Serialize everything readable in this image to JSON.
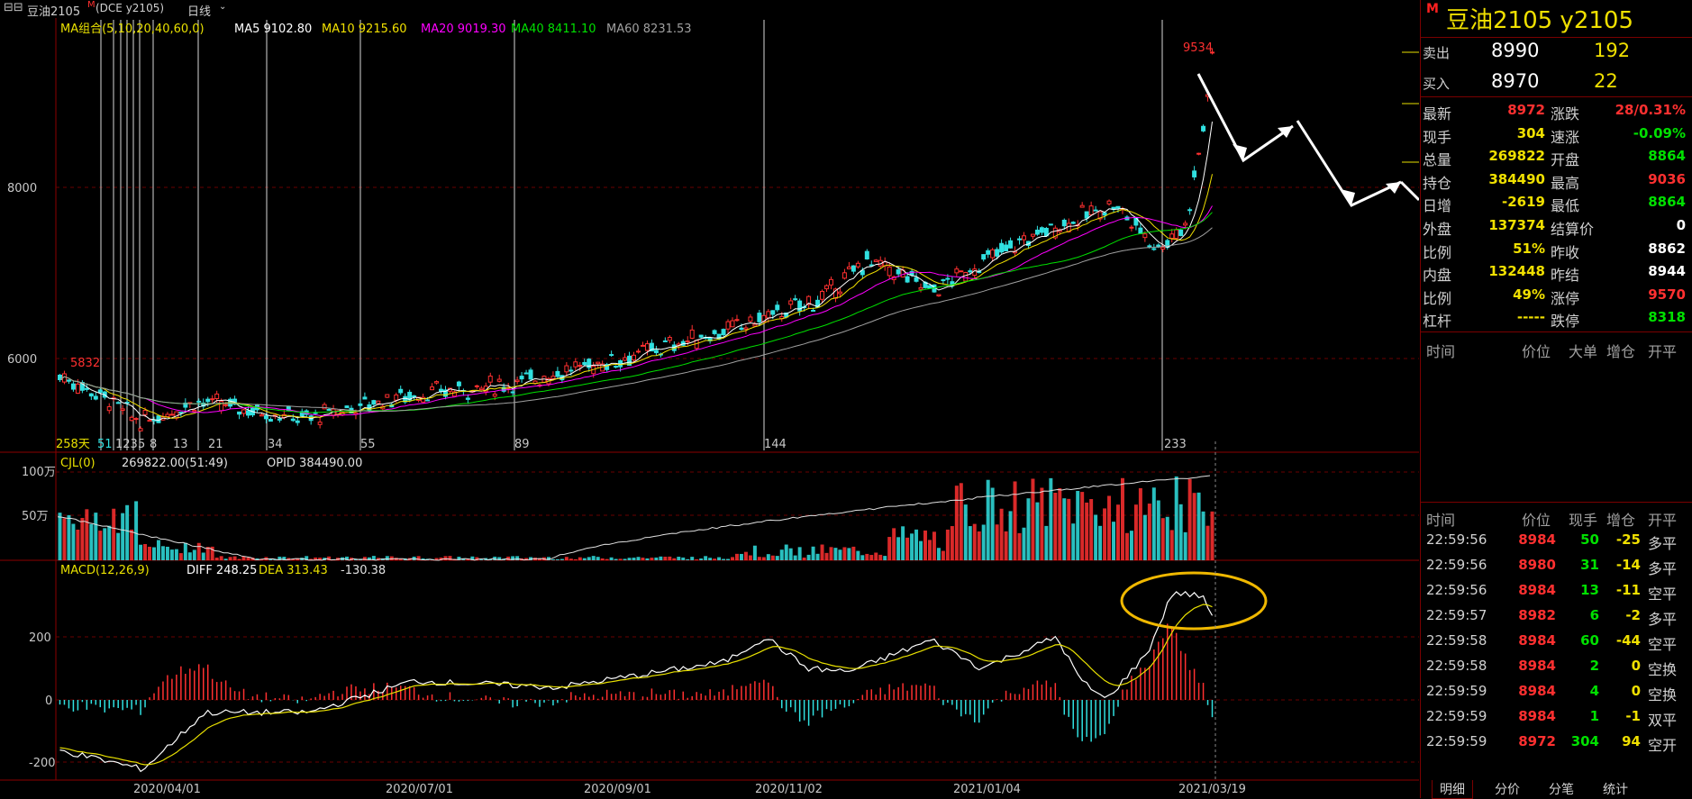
{
  "header": {
    "app_icon": "menu-icon",
    "contract": "豆油2105",
    "contract_marker": "M",
    "exchange_code": "(DCE  y2105)",
    "period": "日线"
  },
  "ma_legend": {
    "title": "MA组合(5,10,20,40,60,0)",
    "items": [
      {
        "label": "MA5 9102.80",
        "color": "#ffffff"
      },
      {
        "label": "MA10 9215.60",
        "color": "#f0e000"
      },
      {
        "label": "MA20 9019.30",
        "color": "#ff00ff"
      },
      {
        "label": "MA40 8411.10",
        "color": "#00e000"
      },
      {
        "label": "MA60 8231.53",
        "color": "#a0a0a0"
      }
    ]
  },
  "main_axis": {
    "labels": [
      "8000",
      "6000"
    ],
    "high_mark": "9534",
    "low_mark": "5832"
  },
  "fib_labels": [
    "258天",
    "51",
    "123",
    "5",
    "8",
    "13",
    "21",
    "34",
    "55",
    "89",
    "144",
    "233"
  ],
  "vol_legend": {
    "title": "CJL(0)",
    "value": "269822.00(51:49)",
    "opid": "OPID 384490.00",
    "axis": [
      "100万",
      "50万"
    ]
  },
  "macd_legend": {
    "title": "MACD(12,26,9)",
    "diff": "DIFF 248.25",
    "dea": "DEA 313.43",
    "macd": "-130.38",
    "axis": [
      "200",
      "0",
      "-200"
    ]
  },
  "date_axis": [
    "2020/04/01",
    "2020/07/01",
    "2020/09/01",
    "2020/11/02",
    "2021/01/04",
    "2021/03/19"
  ],
  "quote": {
    "marker": "M",
    "title": "豆油2105  y2105",
    "sell_label": "卖出",
    "sell_price": "8990",
    "sell_qty": "192",
    "buy_label": "买入",
    "buy_price": "8970",
    "buy_qty": "22",
    "rows": [
      [
        "最新",
        "8972",
        "r",
        "涨跌",
        "28/0.31%",
        "r"
      ],
      [
        "现手",
        "304",
        "y",
        "速涨",
        "-0.09%",
        "g"
      ],
      [
        "总量",
        "269822",
        "y",
        "开盘",
        "8864",
        "g"
      ],
      [
        "持仓",
        "384490",
        "y",
        "最高",
        "9036",
        "r"
      ],
      [
        "日增",
        "-2619",
        "y",
        "最低",
        "8864",
        "g"
      ],
      [
        "外盘",
        "137374",
        "y",
        "结算价",
        "0",
        "w"
      ],
      [
        "比例",
        "51%",
        "y",
        "昨收",
        "8862",
        "w"
      ],
      [
        "内盘",
        "132448",
        "y",
        "昨结",
        "8944",
        "w"
      ],
      [
        "比例",
        "49%",
        "y",
        "涨停",
        "9570",
        "r"
      ],
      [
        "杠杆",
        "-----",
        "y",
        "跌停",
        "8318",
        "g"
      ]
    ],
    "big_header": [
      "时间",
      "价位",
      "大单",
      "增仓",
      "开平"
    ],
    "tick_header": [
      "时间",
      "价位",
      "现手",
      "增仓",
      "开平"
    ],
    "ticks": [
      [
        "22:59:56",
        "8984",
        "50",
        "-25",
        "多平"
      ],
      [
        "22:59:56",
        "8980",
        "31",
        "-14",
        "多平"
      ],
      [
        "22:59:56",
        "8984",
        "13",
        "-11",
        "空平"
      ],
      [
        "22:59:57",
        "8982",
        "6",
        "-2",
        "多平"
      ],
      [
        "22:59:58",
        "8984",
        "60",
        "-44",
        "空平"
      ],
      [
        "22:59:58",
        "8984",
        "2",
        "0",
        "空换"
      ],
      [
        "22:59:59",
        "8984",
        "4",
        "0",
        "空换"
      ],
      [
        "22:59:59",
        "8984",
        "1",
        "-1",
        "双平"
      ],
      [
        "22:59:59",
        "8972",
        "304",
        "94",
        "空开"
      ]
    ],
    "tabs": [
      "明细",
      "分价",
      "分笔",
      "统计"
    ]
  }
}
